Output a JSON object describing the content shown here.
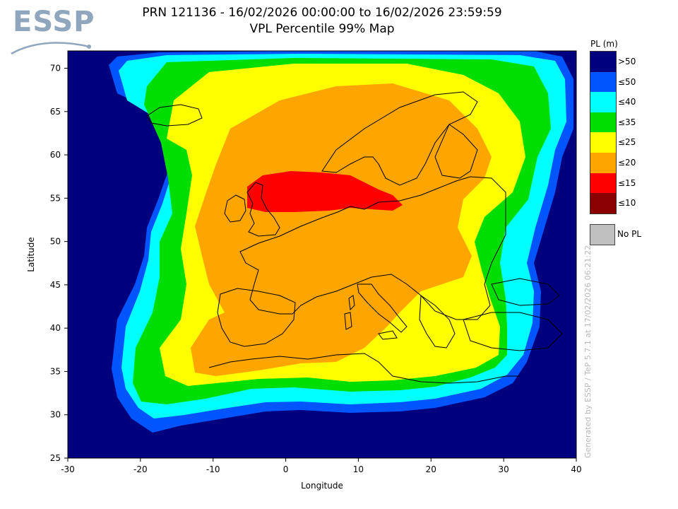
{
  "header": {
    "logo_text": "ESSP",
    "title_line1": "PRN 121136 - 16/02/2026 00:00:00 to 16/02/2026 23:59:59",
    "title_line2": "VPL Percentile 99% Map"
  },
  "axes": {
    "x_label": "Longitude",
    "y_label": "Latitude",
    "x_range": [
      -30,
      40
    ],
    "y_range": [
      25,
      72
    ],
    "x_ticks": [
      "-30",
      "-20",
      "-10",
      "0",
      "10",
      "20",
      "30",
      "40"
    ],
    "y_ticks": [
      "25",
      "30",
      "35",
      "40",
      "45",
      "50",
      "55",
      "60",
      "65",
      "70"
    ]
  },
  "legend": {
    "title": "PL (m)",
    "items": [
      {
        "label": ">50",
        "color": "#00007f"
      },
      {
        "label": "≤50",
        "color": "#0055ff"
      },
      {
        "label": "≤40",
        "color": "#00ffff"
      },
      {
        "label": "≤35",
        "color": "#00dd00"
      },
      {
        "label": "≤25",
        "color": "#ffff00"
      },
      {
        "label": "≤20",
        "color": "#ffa500"
      },
      {
        "label": "≤15",
        "color": "#ff0000"
      },
      {
        "label": "≤10",
        "color": "#8b0000"
      }
    ],
    "no_pl": {
      "label": "No PL",
      "color": "#c0c0c0"
    }
  },
  "credit": "Generated by ESSP / TeP 5.7.1 at 17/02/2026 06:21:22",
  "chart_data": {
    "type": "heatmap",
    "title": "PRN 121136 - 16/02/2026 00:00:00 to 16/02/2026 23:59:59 — VPL Percentile 99% Map",
    "xlabel": "Longitude",
    "ylabel": "Latitude",
    "xlim": [
      -30,
      40
    ],
    "ylim": [
      25,
      72
    ],
    "zones": [
      {
        "class": ">50",
        "description": "outer background (Atlantic, North Africa, Middle East)"
      },
      {
        "class": "≤50",
        "description": "thin outer ring"
      },
      {
        "class": "≤40",
        "description": "ring around west and north"
      },
      {
        "class": "≤35",
        "description": "ring around Europe, eastern edge"
      },
      {
        "class": "≤25",
        "description": "ring around core; Balkans/Greece"
      },
      {
        "class": "≤20",
        "description": "core of Europe"
      },
      {
        "class": "≤15",
        "description": "band ~lat 54-57 from lon -5 to 16"
      }
    ]
  }
}
